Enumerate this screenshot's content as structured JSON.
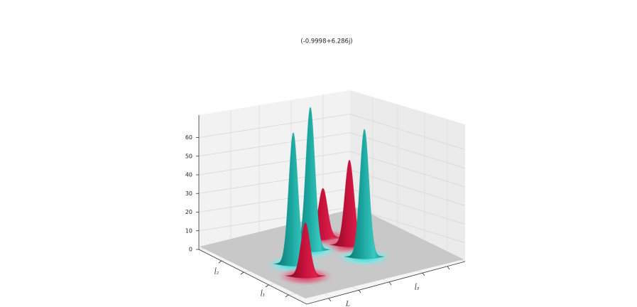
{
  "chart_data": {
    "type": "surface3d",
    "title": "(-0.9998+6.286j)",
    "zlim": [
      0,
      72
    ],
    "zticks": [
      0,
      10,
      20,
      30,
      40,
      50,
      60
    ],
    "xlim": [
      -3,
      3
    ],
    "ylim": [
      -3,
      3
    ],
    "axis_labels": [
      "l̂₂",
      "l̂₁",
      "l̂₃",
      "L"
    ],
    "peaks": {
      "x": [
        -0.84,
        1.42,
        0.73,
        -0.04,
        0.37,
        -1.19
      ],
      "y": [
        0.68,
        0.62,
        -0.32,
        -1.48,
        0.92,
        -1.79
      ],
      "values": [
        68,
        26,
        76,
        70,
        45,
        28
      ],
      "colors": [
        "#17a39c",
        "#c3113a",
        "#17a39c",
        "#17a39c",
        "#c3113a",
        "#c3113a"
      ]
    }
  }
}
